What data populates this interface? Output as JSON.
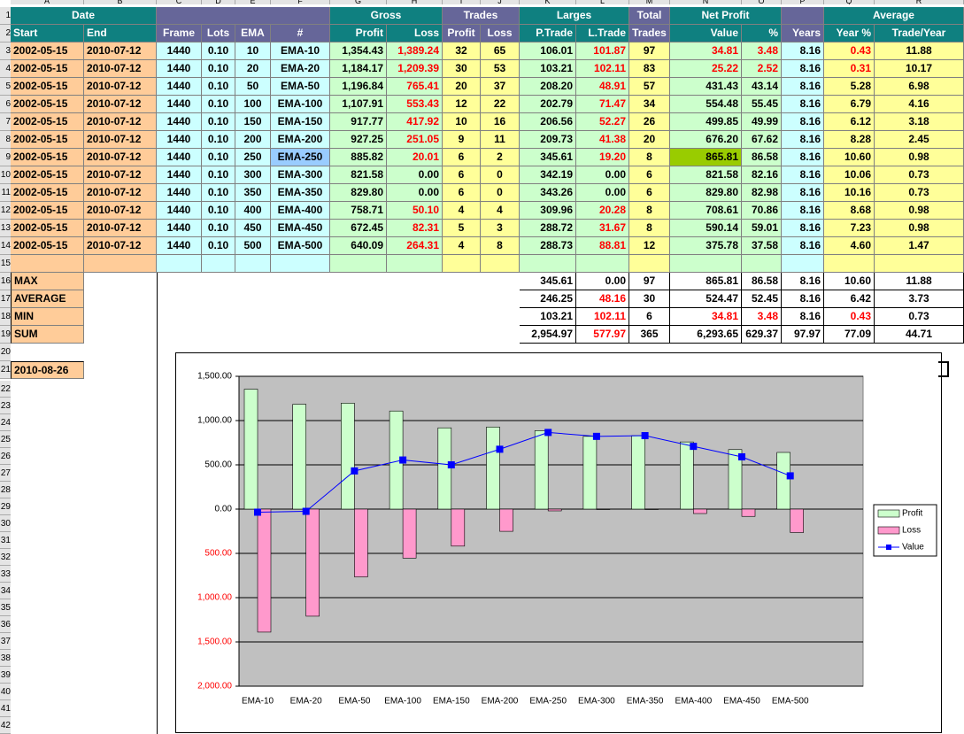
{
  "column_headers": [
    "A",
    "B",
    "C",
    "D",
    "E",
    "F",
    "G",
    "H",
    "I",
    "J",
    "K",
    "L",
    "M",
    "N",
    "O",
    "P",
    "Q",
    "R"
  ],
  "row_numbers": [
    "1",
    "2",
    "3",
    "4",
    "5",
    "6",
    "7",
    "8",
    "9",
    "10",
    "11",
    "12",
    "13",
    "14",
    "15",
    "16",
    "17",
    "18",
    "19",
    "20",
    "21",
    "22",
    "23",
    "24",
    "25",
    "26",
    "27",
    "28",
    "29",
    "30",
    "31",
    "32",
    "33",
    "34",
    "35",
    "36",
    "37",
    "38",
    "39",
    "40",
    "41",
    "42"
  ],
  "header_row_1": {
    "date": "Date",
    "gross": "Gross",
    "trades": "Trades",
    "larges": "Larges",
    "total": "Total",
    "net_profit": "Net Profit",
    "average": "Average"
  },
  "header_row_2": [
    "Start",
    "End",
    "Frame",
    "Lots",
    "EMA",
    "#",
    "Profit",
    "Loss",
    "Profit",
    "Loss",
    "P.Trade",
    "L.Trade",
    "Trades",
    "Value",
    "%",
    "Years",
    "Year %",
    "Trade/Year"
  ],
  "rows": [
    [
      "2002-05-15",
      "2010-07-12",
      "1440",
      "0.10",
      "10",
      "EMA-10",
      "1,354.43",
      "1,389.24",
      "32",
      "65",
      "106.01",
      "101.87",
      "97",
      "34.81",
      "3.48",
      "8.16",
      "0.43",
      "11.88"
    ],
    [
      "2002-05-15",
      "2010-07-12",
      "1440",
      "0.10",
      "20",
      "EMA-20",
      "1,184.17",
      "1,209.39",
      "30",
      "53",
      "103.21",
      "102.11",
      "83",
      "25.22",
      "2.52",
      "8.16",
      "0.31",
      "10.17"
    ],
    [
      "2002-05-15",
      "2010-07-12",
      "1440",
      "0.10",
      "50",
      "EMA-50",
      "1,196.84",
      "765.41",
      "20",
      "37",
      "208.20",
      "48.91",
      "57",
      "431.43",
      "43.14",
      "8.16",
      "5.28",
      "6.98"
    ],
    [
      "2002-05-15",
      "2010-07-12",
      "1440",
      "0.10",
      "100",
      "EMA-100",
      "1,107.91",
      "553.43",
      "12",
      "22",
      "202.79",
      "71.47",
      "34",
      "554.48",
      "55.45",
      "8.16",
      "6.79",
      "4.16"
    ],
    [
      "2002-05-15",
      "2010-07-12",
      "1440",
      "0.10",
      "150",
      "EMA-150",
      "917.77",
      "417.92",
      "10",
      "16",
      "206.56",
      "52.27",
      "26",
      "499.85",
      "49.99",
      "8.16",
      "6.12",
      "3.18"
    ],
    [
      "2002-05-15",
      "2010-07-12",
      "1440",
      "0.10",
      "200",
      "EMA-200",
      "927.25",
      "251.05",
      "9",
      "11",
      "209.73",
      "41.38",
      "20",
      "676.20",
      "67.62",
      "8.16",
      "8.28",
      "2.45"
    ],
    [
      "2002-05-15",
      "2010-07-12",
      "1440",
      "0.10",
      "250",
      "EMA-250",
      "885.82",
      "20.01",
      "6",
      "2",
      "345.61",
      "19.20",
      "8",
      "865.81",
      "86.58",
      "8.16",
      "10.60",
      "0.98"
    ],
    [
      "2002-05-15",
      "2010-07-12",
      "1440",
      "0.10",
      "300",
      "EMA-300",
      "821.58",
      "0.00",
      "6",
      "0",
      "342.19",
      "0.00",
      "6",
      "821.58",
      "82.16",
      "8.16",
      "10.06",
      "0.73"
    ],
    [
      "2002-05-15",
      "2010-07-12",
      "1440",
      "0.10",
      "350",
      "EMA-350",
      "829.80",
      "0.00",
      "6",
      "0",
      "343.26",
      "0.00",
      "6",
      "829.80",
      "82.98",
      "8.16",
      "10.16",
      "0.73"
    ],
    [
      "2002-05-15",
      "2010-07-12",
      "1440",
      "0.10",
      "400",
      "EMA-400",
      "758.71",
      "50.10",
      "4",
      "4",
      "309.96",
      "20.28",
      "8",
      "708.61",
      "70.86",
      "8.16",
      "8.68",
      "0.98"
    ],
    [
      "2002-05-15",
      "2010-07-12",
      "1440",
      "0.10",
      "450",
      "EMA-450",
      "672.45",
      "82.31",
      "5",
      "3",
      "288.72",
      "31.67",
      "8",
      "590.14",
      "59.01",
      "8.16",
      "7.23",
      "0.98"
    ],
    [
      "2002-05-15",
      "2010-07-12",
      "1440",
      "0.10",
      "500",
      "EMA-500",
      "640.09",
      "264.31",
      "4",
      "8",
      "288.73",
      "88.81",
      "12",
      "375.78",
      "37.58",
      "8.16",
      "4.60",
      "1.47"
    ]
  ],
  "summary": [
    {
      "label": "MAX",
      "values": [
        "345.61",
        "0.00",
        "97",
        "865.81",
        "86.58",
        "8.16",
        "10.60",
        "11.88"
      ]
    },
    {
      "label": "AVERAGE",
      "values": [
        "246.25",
        "48.16",
        "30",
        "524.47",
        "52.45",
        "8.16",
        "6.42",
        "3.73"
      ]
    },
    {
      "label": "MIN",
      "values": [
        "103.21",
        "102.11",
        "6",
        "34.81",
        "3.48",
        "8.16",
        "0.43",
        "0.73"
      ]
    },
    {
      "label": "SUM",
      "values": [
        "2,954.97",
        "577.97",
        "365",
        "6,293.65",
        "629.37",
        "97.97",
        "77.09",
        "44.71"
      ]
    }
  ],
  "date_cell": "2010-08-26",
  "chart": {
    "type": "combo",
    "categories": [
      "EMA-10",
      "EMA-20",
      "EMA-50",
      "EMA-100",
      "EMA-150",
      "EMA-200",
      "EMA-250",
      "EMA-300",
      "EMA-350",
      "EMA-400",
      "EMA-450",
      "EMA-500"
    ],
    "series": [
      {
        "name": "Profit",
        "kind": "bar",
        "color": "#ccffcc",
        "values": [
          1354.43,
          1184.17,
          1196.84,
          1107.91,
          917.77,
          927.25,
          885.82,
          821.58,
          829.8,
          758.71,
          672.45,
          640.09
        ]
      },
      {
        "name": "Loss",
        "kind": "bar",
        "color": "#ff99cc",
        "values": [
          -1389.24,
          -1209.39,
          -765.41,
          -553.43,
          -417.92,
          -251.05,
          -20.01,
          0,
          0,
          -50.1,
          -82.31,
          -264.31
        ]
      },
      {
        "name": "Value",
        "kind": "line",
        "color": "#0000ff",
        "values": [
          -34.81,
          -25.22,
          431.43,
          554.48,
          499.85,
          676.2,
          865.81,
          821.58,
          829.8,
          708.61,
          590.14,
          375.78
        ]
      }
    ],
    "ylim": [
      -2000,
      1500
    ],
    "yticks": [
      {
        "value": 1500,
        "label": "1,500.00"
      },
      {
        "value": 1000,
        "label": "1,000.00"
      },
      {
        "value": 500,
        "label": "500.00"
      },
      {
        "value": 0,
        "label": "0.00"
      },
      {
        "value": -500,
        "label": "500.00"
      },
      {
        "value": -1000,
        "label": "1,000.00"
      },
      {
        "value": -1500,
        "label": "1,500.00"
      },
      {
        "value": -2000,
        "label": "2,000.00"
      }
    ],
    "grid": true,
    "plot_background": "#c0c0c0",
    "legend": "right"
  }
}
